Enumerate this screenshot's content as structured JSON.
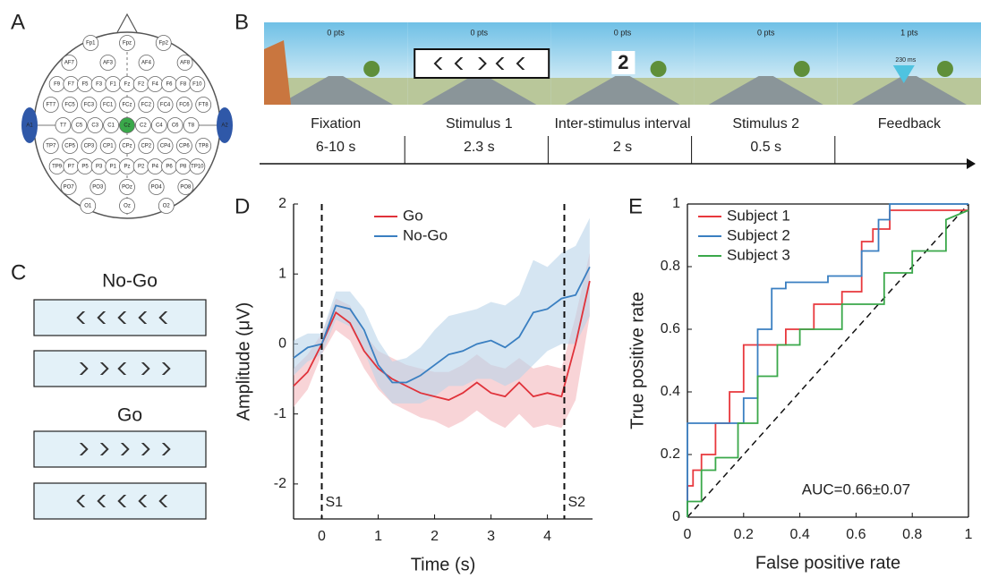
{
  "panels": {
    "a": "A",
    "b": "B",
    "c": "C",
    "d": "D",
    "e": "E"
  },
  "eeg": {
    "rows": [
      [
        "Fp1",
        "Fpz",
        "Fp2"
      ],
      [
        "AF7",
        "AF3",
        "AF4",
        "AF8"
      ],
      [
        "F9",
        "F7",
        "F5",
        "F3",
        "F1",
        "Fz",
        "F2",
        "F4",
        "F6",
        "F8",
        "F10"
      ],
      [
        "FT7",
        "FC5",
        "FC3",
        "FC1",
        "FCz",
        "FC2",
        "FC4",
        "FC6",
        "FT8"
      ],
      [
        "A1",
        "T7",
        "C5",
        "C3",
        "C1",
        "Cz",
        "C2",
        "C4",
        "C6",
        "T8",
        "A2"
      ],
      [
        "TP7",
        "CP5",
        "CP3",
        "CP1",
        "CPz",
        "CP2",
        "CP4",
        "CP6",
        "TP8"
      ],
      [
        "TP9",
        "P7",
        "P5",
        "P3",
        "P1",
        "Pz",
        "P2",
        "P4",
        "P6",
        "P8",
        "TP10"
      ],
      [
        "PO7",
        "PO3",
        "POz",
        "PO4",
        "PO8"
      ],
      [
        "O1",
        "Oz",
        "O2"
      ]
    ]
  },
  "task": {
    "scores": [
      "0 pts",
      "0 pts",
      "0 pts",
      "0 pts",
      "1 pts"
    ],
    "cue": "2",
    "feedback_time": "230 ms",
    "phases": [
      {
        "name": "Fixation",
        "duration": "6-10 s"
      },
      {
        "name": "Stimulus 1",
        "duration": "2.3 s"
      },
      {
        "name": "Inter-stimulus interval",
        "duration": "2 s"
      },
      {
        "name": "Stimulus 2",
        "duration": "0.5 s"
      },
      {
        "name": "Feedback"
      }
    ]
  },
  "stimuli": {
    "nogo_label": "No-Go",
    "go_label": "Go"
  },
  "chart_data": [
    {
      "type": "line",
      "xlabel": "Time (s)",
      "ylabel": "Amplitude (μV)",
      "x": [
        -0.5,
        -0.25,
        0,
        0.25,
        0.5,
        0.75,
        1,
        1.25,
        1.5,
        1.75,
        2,
        2.25,
        2.5,
        2.75,
        3,
        3.25,
        3.5,
        3.75,
        4,
        4.25,
        4.5,
        4.75
      ],
      "series": [
        {
          "name": "Go",
          "color": "#e0323a",
          "band_color": "#f4b8bd",
          "values": [
            -0.6,
            -0.4,
            0.0,
            0.45,
            0.3,
            -0.1,
            -0.35,
            -0.5,
            -0.6,
            -0.7,
            -0.75,
            -0.8,
            -0.7,
            -0.55,
            -0.7,
            -0.75,
            -0.55,
            -0.75,
            -0.7,
            -0.75,
            0.0,
            0.9
          ],
          "upper": [
            -0.35,
            -0.15,
            0.15,
            0.65,
            0.55,
            0.15,
            -0.1,
            -0.2,
            -0.3,
            -0.35,
            -0.4,
            -0.4,
            -0.3,
            -0.15,
            -0.3,
            -0.35,
            -0.2,
            -0.35,
            -0.3,
            -0.35,
            0.4,
            1.3
          ],
          "lower": [
            -0.9,
            -0.65,
            -0.15,
            0.2,
            0.05,
            -0.35,
            -0.65,
            -0.85,
            -0.95,
            -1.05,
            -1.1,
            -1.2,
            -1.1,
            -0.95,
            -1.1,
            -1.2,
            -1.0,
            -1.2,
            -1.15,
            -1.2,
            -0.8,
            0.4
          ]
        },
        {
          "name": "No-Go",
          "color": "#3a7fc1",
          "band_color": "#b9d3ea",
          "values": [
            -0.2,
            -0.05,
            0.0,
            0.55,
            0.5,
            0.2,
            -0.3,
            -0.55,
            -0.55,
            -0.45,
            -0.3,
            -0.15,
            -0.1,
            0.0,
            0.05,
            -0.05,
            0.1,
            0.45,
            0.5,
            0.65,
            0.7,
            1.1
          ],
          "upper": [
            0.05,
            0.15,
            0.15,
            0.75,
            0.75,
            0.5,
            0.05,
            -0.25,
            -0.2,
            -0.05,
            0.2,
            0.4,
            0.45,
            0.5,
            0.6,
            0.55,
            0.7,
            1.2,
            1.1,
            1.3,
            1.4,
            1.8
          ],
          "lower": [
            -0.45,
            -0.25,
            -0.15,
            0.35,
            0.25,
            -0.1,
            -0.6,
            -0.85,
            -0.85,
            -0.85,
            -0.75,
            -0.6,
            -0.6,
            -0.5,
            -0.5,
            -0.6,
            -0.5,
            -0.3,
            -0.1,
            0.0,
            0.0,
            0.4
          ]
        }
      ],
      "xlim": [
        -0.5,
        4.8
      ],
      "ylim": [
        -2.5,
        2
      ],
      "xticks": [
        0,
        1,
        2,
        3,
        4
      ],
      "yticks": [
        -2,
        -1,
        0,
        1,
        2
      ],
      "markers": [
        {
          "x": 0,
          "label": "S1"
        },
        {
          "x": 4.3,
          "label": "S2"
        }
      ],
      "legend": "upper center",
      "box": false
    },
    {
      "type": "step",
      "xlabel": "False positive rate",
      "ylabel": "True positive rate",
      "series": [
        {
          "name": "Subject 1",
          "color": "#e8383d",
          "x": [
            0,
            0,
            0.02,
            0.02,
            0.05,
            0.05,
            0.1,
            0.1,
            0.15,
            0.15,
            0.2,
            0.2,
            0.35,
            0.35,
            0.45,
            0.45,
            0.55,
            0.55,
            0.62,
            0.62,
            0.66,
            0.66,
            0.72,
            0.72,
            1
          ],
          "values": [
            0,
            0.1,
            0.1,
            0.15,
            0.15,
            0.2,
            0.2,
            0.3,
            0.3,
            0.4,
            0.4,
            0.55,
            0.55,
            0.6,
            0.6,
            0.68,
            0.68,
            0.72,
            0.72,
            0.88,
            0.88,
            0.92,
            0.92,
            0.98,
            0.98
          ]
        },
        {
          "name": "Subject 2",
          "color": "#3a7fc1",
          "x": [
            0,
            0,
            0.2,
            0.2,
            0.25,
            0.25,
            0.3,
            0.3,
            0.35,
            0.35,
            0.5,
            0.5,
            0.62,
            0.62,
            0.68,
            0.68,
            0.72,
            0.72,
            0.78,
            1
          ],
          "values": [
            0,
            0.3,
            0.3,
            0.38,
            0.38,
            0.6,
            0.6,
            0.73,
            0.73,
            0.75,
            0.75,
            0.77,
            0.77,
            0.85,
            0.85,
            0.95,
            0.95,
            1,
            1,
            1
          ]
        },
        {
          "name": "Subject 3",
          "color": "#3aa84a",
          "x": [
            0,
            0,
            0.05,
            0.05,
            0.1,
            0.1,
            0.18,
            0.18,
            0.25,
            0.25,
            0.32,
            0.32,
            0.4,
            0.4,
            0.55,
            0.55,
            0.7,
            0.7,
            0.8,
            0.8,
            0.92,
            0.92,
            1
          ],
          "values": [
            0,
            0.05,
            0.05,
            0.15,
            0.15,
            0.19,
            0.19,
            0.3,
            0.3,
            0.45,
            0.45,
            0.55,
            0.55,
            0.6,
            0.6,
            0.68,
            0.68,
            0.78,
            0.78,
            0.85,
            0.85,
            0.95,
            0.98
          ]
        }
      ],
      "xlim": [
        0,
        1
      ],
      "ylim": [
        0,
        1
      ],
      "xticks": [
        0,
        0.2,
        0.4,
        0.6,
        0.8,
        1
      ],
      "yticks": [
        0,
        0.2,
        0.4,
        0.6,
        0.8,
        1
      ],
      "annotation": "AUC=0.66±0.07",
      "legend": "upper left",
      "box": true
    }
  ]
}
